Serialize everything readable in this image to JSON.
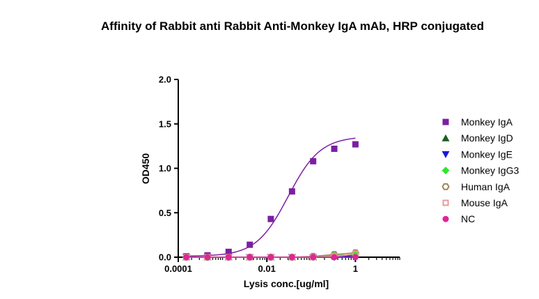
{
  "chart_data": {
    "type": "scatter",
    "title": "Affinity of Rabbit anti Rabbit Anti-Monkey IgA mAb, HRP conjugated",
    "xlabel": "Lysis conc.[ug/ml]",
    "ylabel": "OD450",
    "xscale": "log",
    "xlim": [
      0.0001,
      10
    ],
    "ylim": [
      0,
      2.0
    ],
    "x_ticks": [
      0.0001,
      0.01,
      1
    ],
    "x_tick_labels": [
      "0.0001",
      "0.01",
      "1"
    ],
    "y_ticks": [
      0,
      0.5,
      1.0,
      1.5,
      2.0
    ],
    "y_tick_labels": [
      "0.0",
      "0.5",
      "1.0",
      "1.5",
      "2.0"
    ],
    "x": [
      0.000152,
      0.000457,
      0.00137,
      0.00412,
      0.0123,
      0.037,
      0.111,
      0.333,
      1
    ],
    "legend_position": "right",
    "series": [
      {
        "name": "Monkey IgA",
        "color": "#7b1fa2",
        "marker": "square",
        "fit": true,
        "values": [
          0.01,
          0.02,
          0.06,
          0.14,
          0.43,
          0.74,
          1.08,
          1.22,
          1.27
        ]
      },
      {
        "name": "Monkey IgD",
        "color": "#1b5e20",
        "marker": "triangle-up",
        "fit": false,
        "values": [
          0.0,
          0.0,
          0.0,
          0.0,
          0.0,
          0.0,
          0.0,
          0.02,
          0.03
        ]
      },
      {
        "name": "Monkey IgE",
        "color": "#1a1adb",
        "marker": "triangle-down",
        "fit": false,
        "values": [
          0.0,
          0.0,
          0.0,
          0.0,
          0.0,
          0.0,
          0.0,
          0.0,
          0.02
        ]
      },
      {
        "name": "Monkey IgG3",
        "color": "#2ee62e",
        "marker": "diamond",
        "fit": false,
        "values": [
          0.0,
          0.0,
          0.0,
          0.0,
          0.0,
          0.0,
          0.0,
          0.02,
          0.03
        ]
      },
      {
        "name": "Human IgA",
        "color": "#a0875a",
        "marker": "hexagon-open",
        "fit": false,
        "values": [
          0.0,
          0.0,
          0.0,
          0.0,
          0.0,
          0.0,
          0.01,
          0.03,
          0.05
        ]
      },
      {
        "name": "Mouse IgA",
        "color": "#e89a9a",
        "marker": "square-open",
        "fit": false,
        "values": [
          0.0,
          0.0,
          0.0,
          0.0,
          0.0,
          0.0,
          0.0,
          0.01,
          0.04
        ]
      },
      {
        "name": "NC",
        "color": "#e0249a",
        "marker": "circle",
        "fit": false,
        "values": [
          0.0,
          0.0,
          0.0,
          0.0,
          0.0,
          0.0,
          0.0,
          0.0,
          0.0
        ]
      }
    ]
  }
}
